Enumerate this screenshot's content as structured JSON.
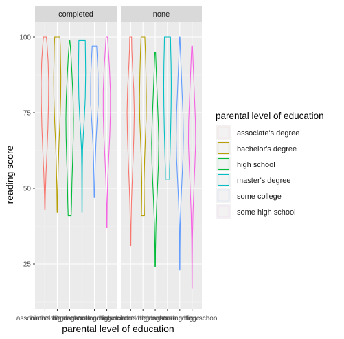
{
  "chart_data": {
    "type": "violin",
    "title": "",
    "xlabel": "parental level of education",
    "ylabel": "reading score",
    "ylim": [
      10,
      105
    ],
    "yticks": [
      25,
      50,
      75,
      100
    ],
    "grid": true,
    "facets": [
      "completed",
      "none"
    ],
    "categories": [
      "associate's degree",
      "bachelor's degree",
      "high school",
      "master's degree",
      "some college",
      "some high school"
    ],
    "legend": {
      "title": "parental level of education",
      "position": "right",
      "entries": [
        "associate's degree",
        "bachelor's degree",
        "high school",
        "master's degree",
        "some college",
        "some high school"
      ]
    },
    "colors": {
      "associate's degree": "#F8766D",
      "bachelor's degree": "#B79F00",
      "high school": "#00BA38",
      "master's degree": "#00BFC4",
      "some college": "#619CFF",
      "some high school": "#F564E3"
    },
    "series": [
      {
        "facet": "completed",
        "category": "associate's degree",
        "min": 43,
        "max": 100,
        "profile": [
          [
            43,
            0.05
          ],
          [
            48,
            0.12
          ],
          [
            55,
            0.3
          ],
          [
            62,
            0.55
          ],
          [
            70,
            0.8
          ],
          [
            78,
            0.95
          ],
          [
            85,
            1.0
          ],
          [
            92,
            0.85
          ],
          [
            97,
            0.6
          ],
          [
            100,
            0.4
          ]
        ]
      },
      {
        "facet": "completed",
        "category": "bachelor's degree",
        "min": 42,
        "max": 100,
        "profile": [
          [
            42,
            0.05
          ],
          [
            50,
            0.12
          ],
          [
            57,
            0.25
          ],
          [
            65,
            0.45
          ],
          [
            72,
            0.7
          ],
          [
            80,
            0.9
          ],
          [
            87,
            0.95
          ],
          [
            93,
            0.85
          ],
          [
            97,
            0.8
          ],
          [
            100,
            0.7
          ]
        ]
      },
      {
        "facet": "completed",
        "category": "high school",
        "min": 41,
        "max": 99,
        "profile": [
          [
            41,
            0.4
          ],
          [
            45,
            0.5
          ],
          [
            52,
            0.6
          ],
          [
            60,
            0.8
          ],
          [
            67,
            0.95
          ],
          [
            73,
            1.0
          ],
          [
            80,
            0.9
          ],
          [
            88,
            0.6
          ],
          [
            94,
            0.35
          ],
          [
            99,
            0.05
          ]
        ]
      },
      {
        "facet": "completed",
        "category": "master's degree",
        "min": 42,
        "max": 99,
        "profile": [
          [
            42,
            0.03
          ],
          [
            50,
            0.05
          ],
          [
            57,
            0.08
          ],
          [
            63,
            0.15
          ],
          [
            68,
            0.35
          ],
          [
            73,
            0.6
          ],
          [
            80,
            0.85
          ],
          [
            88,
            0.95
          ],
          [
            94,
            0.9
          ],
          [
            99,
            0.85
          ]
        ]
      },
      {
        "facet": "completed",
        "category": "some college",
        "min": 47,
        "max": 97,
        "profile": [
          [
            47,
            0.08
          ],
          [
            52,
            0.12
          ],
          [
            58,
            0.2
          ],
          [
            65,
            0.4
          ],
          [
            72,
            0.7
          ],
          [
            78,
            1.0
          ],
          [
            83,
            1.0
          ],
          [
            88,
            0.95
          ],
          [
            92,
            0.8
          ],
          [
            97,
            0.6
          ]
        ]
      },
      {
        "facet": "completed",
        "category": "some high school",
        "min": 37,
        "max": 100,
        "profile": [
          [
            37,
            0.05
          ],
          [
            45,
            0.1
          ],
          [
            53,
            0.25
          ],
          [
            60,
            0.5
          ],
          [
            68,
            0.8
          ],
          [
            75,
            0.95
          ],
          [
            82,
            0.95
          ],
          [
            90,
            0.7
          ],
          [
            96,
            0.4
          ],
          [
            100,
            0.2
          ]
        ]
      },
      {
        "facet": "none",
        "category": "associate's degree",
        "min": 31,
        "max": 100,
        "profile": [
          [
            31,
            0.05
          ],
          [
            38,
            0.1
          ],
          [
            45,
            0.2
          ],
          [
            52,
            0.4
          ],
          [
            60,
            0.65
          ],
          [
            68,
            0.85
          ],
          [
            75,
            0.95
          ],
          [
            83,
            0.8
          ],
          [
            90,
            0.5
          ],
          [
            96,
            0.3
          ],
          [
            100,
            0.25
          ]
        ]
      },
      {
        "facet": "none",
        "category": "bachelor's degree",
        "min": 41,
        "max": 100,
        "profile": [
          [
            41,
            0.4
          ],
          [
            45,
            0.35
          ],
          [
            52,
            0.3
          ],
          [
            60,
            0.45
          ],
          [
            67,
            0.65
          ],
          [
            73,
            0.85
          ],
          [
            80,
            0.9
          ],
          [
            88,
            0.8
          ],
          [
            95,
            0.65
          ],
          [
            100,
            0.5
          ]
        ]
      },
      {
        "facet": "none",
        "category": "high school",
        "min": 24,
        "max": 95,
        "profile": [
          [
            24,
            0.05
          ],
          [
            30,
            0.08
          ],
          [
            38,
            0.2
          ],
          [
            45,
            0.4
          ],
          [
            52,
            0.65
          ],
          [
            58,
            0.85
          ],
          [
            65,
            0.95
          ],
          [
            72,
            0.8
          ],
          [
            80,
            0.55
          ],
          [
            88,
            0.3
          ],
          [
            95,
            0.1
          ]
        ]
      },
      {
        "facet": "none",
        "category": "master's degree",
        "min": 53,
        "max": 100,
        "profile": [
          [
            53,
            0.55
          ],
          [
            56,
            0.55
          ],
          [
            60,
            0.65
          ],
          [
            65,
            0.75
          ],
          [
            70,
            0.85
          ],
          [
            77,
            0.95
          ],
          [
            84,
            1.0
          ],
          [
            91,
            0.95
          ],
          [
            96,
            0.85
          ],
          [
            100,
            0.8
          ]
        ]
      },
      {
        "facet": "none",
        "category": "some college",
        "min": 23,
        "max": 100,
        "profile": [
          [
            23,
            0.03
          ],
          [
            30,
            0.05
          ],
          [
            38,
            0.12
          ],
          [
            45,
            0.3
          ],
          [
            52,
            0.55
          ],
          [
            60,
            0.85
          ],
          [
            67,
            0.95
          ],
          [
            75,
            0.85
          ],
          [
            82,
            0.6
          ],
          [
            90,
            0.35
          ],
          [
            96,
            0.15
          ],
          [
            100,
            0.05
          ]
        ]
      },
      {
        "facet": "none",
        "category": "some high school",
        "min": 17,
        "max": 97,
        "profile": [
          [
            17,
            0.03
          ],
          [
            25,
            0.05
          ],
          [
            33,
            0.1
          ],
          [
            42,
            0.25
          ],
          [
            50,
            0.5
          ],
          [
            58,
            0.75
          ],
          [
            65,
            0.95
          ],
          [
            72,
            0.9
          ],
          [
            80,
            0.65
          ],
          [
            88,
            0.4
          ],
          [
            94,
            0.2
          ],
          [
            97,
            0.1
          ]
        ]
      }
    ]
  }
}
